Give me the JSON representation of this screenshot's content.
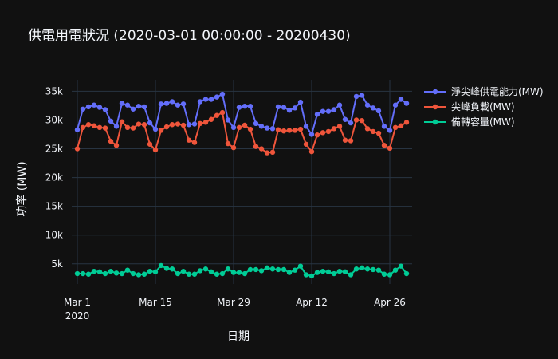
{
  "chart_data": {
    "type": "line",
    "title": "供電用電狀況 (2020-03-01 00:00:00 - 20200430)",
    "xlabel": "日期",
    "ylabel": "功率 (MW)",
    "x_start": "2020-03-01",
    "x_end": "2020-04-29",
    "xlim": [
      "2020-02-29",
      "2020-04-30"
    ],
    "ylim": [
      1500,
      37000
    ],
    "grid": true,
    "legend_position": "top-right",
    "x_ticks": [
      {
        "date": "2020-03-01",
        "label": "Mar 1",
        "sub": "2020"
      },
      {
        "date": "2020-03-15",
        "label": "Mar 15",
        "sub": ""
      },
      {
        "date": "2020-03-29",
        "label": "Mar 29",
        "sub": ""
      },
      {
        "date": "2020-04-12",
        "label": "Apr 12",
        "sub": ""
      },
      {
        "date": "2020-04-26",
        "label": "Apr 26",
        "sub": ""
      }
    ],
    "y_ticks": [
      {
        "value": 5000,
        "label": "5k"
      },
      {
        "value": 10000,
        "label": "10k"
      },
      {
        "value": 15000,
        "label": "15k"
      },
      {
        "value": 20000,
        "label": "20k"
      },
      {
        "value": 25000,
        "label": "25k"
      },
      {
        "value": 30000,
        "label": "30k"
      },
      {
        "value": 35000,
        "label": "35k"
      }
    ],
    "series": [
      {
        "name": "淨尖峰供電能力(MW)",
        "color": "#636efa",
        "values": [
          28300,
          31900,
          32300,
          32600,
          32200,
          31800,
          29800,
          28900,
          32900,
          32600,
          31900,
          32400,
          32300,
          29500,
          28400,
          32800,
          32900,
          33200,
          32600,
          32800,
          29200,
          29300,
          33200,
          33600,
          33600,
          34000,
          34500,
          30000,
          28700,
          32200,
          32400,
          32400,
          29400,
          28900,
          28600,
          28500,
          32300,
          32200,
          31700,
          32100,
          33100,
          28900,
          27500,
          31000,
          31500,
          31500,
          31800,
          32600,
          30100,
          29500,
          34100,
          34300,
          32600,
          32100,
          31600,
          28900,
          28200,
          32600,
          33600,
          32900
        ]
      },
      {
        "name": "尖峰負載(MW)",
        "color": "#ef553b",
        "values": [
          25000,
          28700,
          29200,
          29000,
          28700,
          28600,
          26300,
          25600,
          29700,
          28700,
          28600,
          29300,
          29200,
          25800,
          24800,
          28200,
          28800,
          29200,
          29300,
          29100,
          26500,
          26100,
          29400,
          29600,
          30100,
          30800,
          31300,
          25900,
          25200,
          28700,
          29100,
          28400,
          25400,
          25000,
          24300,
          24400,
          28300,
          28100,
          28200,
          28200,
          28400,
          25800,
          24500,
          27400,
          27800,
          28000,
          28500,
          28900,
          26500,
          26400,
          30000,
          29900,
          28500,
          28000,
          27700,
          25600,
          25100,
          28700,
          29000,
          29600
        ]
      },
      {
        "name": "備轉容量(MW)",
        "color": "#00cc96",
        "values": [
          3300,
          3300,
          3200,
          3700,
          3600,
          3300,
          3700,
          3400,
          3300,
          3900,
          3300,
          3100,
          3200,
          3700,
          3600,
          4700,
          4200,
          4100,
          3300,
          3700,
          3200,
          3200,
          3800,
          4100,
          3600,
          3200,
          3300,
          4100,
          3500,
          3500,
          3300,
          4000,
          4000,
          3800,
          4300,
          4100,
          4000,
          4000,
          3500,
          3900,
          4600,
          3100,
          2900,
          3500,
          3700,
          3600,
          3300,
          3700,
          3600,
          3100,
          4100,
          4300,
          4100,
          4000,
          3900,
          3200,
          3100,
          3900,
          4600,
          3300
        ]
      }
    ]
  }
}
